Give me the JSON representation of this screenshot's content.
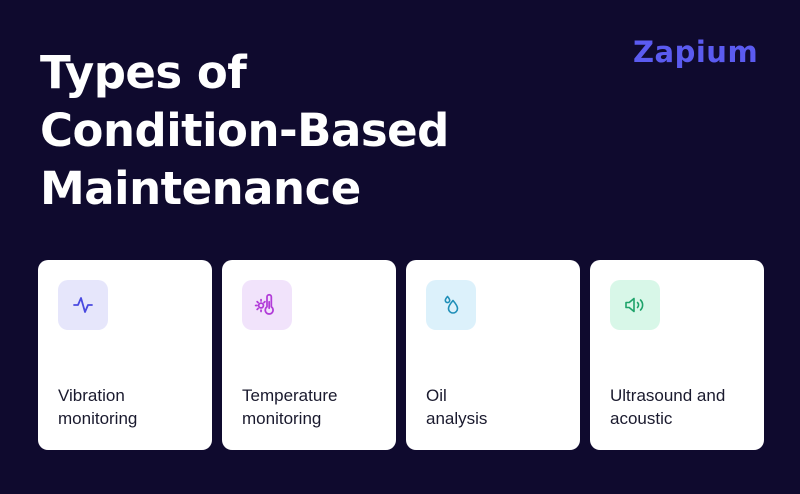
{
  "header": {
    "title_lines": [
      "Types of",
      "Condition-Based",
      "Maintenance"
    ],
    "logo_text": "Zapium"
  },
  "cards": [
    {
      "label_lines": [
        "Vibration",
        "monitoring"
      ],
      "icon": "pulse-icon",
      "icon_bg": "#e6e6fb",
      "icon_color": "#4a4ae0"
    },
    {
      "label_lines": [
        "Temperature",
        "monitoring"
      ],
      "icon": "thermometer-sun-icon",
      "icon_bg": "#f1e3fb",
      "icon_color": "#b13bd8"
    },
    {
      "label_lines": [
        "Oil",
        "analysis"
      ],
      "icon": "droplets-icon",
      "icon_bg": "#dcf1fb",
      "icon_color": "#1f8fb8"
    },
    {
      "label_lines": [
        "Ultrasound and",
        "acoustic"
      ],
      "icon": "speaker-volume-icon",
      "icon_bg": "#d8f7e8",
      "icon_color": "#1ea36a"
    }
  ],
  "colors": {
    "background": "#0f0a2e",
    "card": "#ffffff",
    "text_dark": "#1a1a2e",
    "title": "#ffffff",
    "logo": "#5b5bf0"
  }
}
